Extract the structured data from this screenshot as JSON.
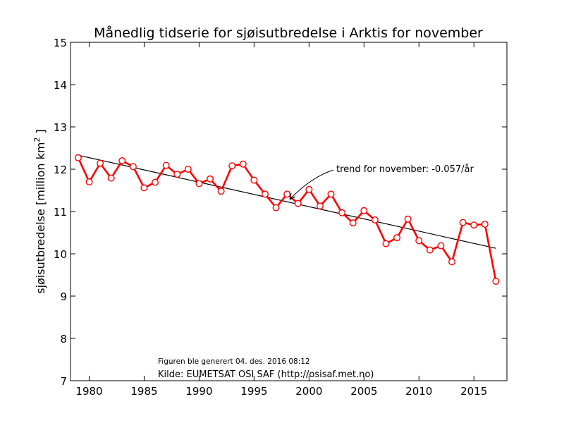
{
  "chart_data": {
    "type": "line",
    "title": "Månedlig tidserie for sjøisutbredelse i Arktis for november",
    "ylabel_main": "sjøisutbredelse [million km",
    "ylabel_sup": "2",
    "ylabel_end": " ]",
    "xlabel": "",
    "xlim": [
      1978.3,
      2018
    ],
    "ylim": [
      7,
      15
    ],
    "xticks": [
      1980,
      1985,
      1990,
      1995,
      2000,
      2005,
      2010,
      2015
    ],
    "yticks": [
      7,
      8,
      9,
      10,
      11,
      12,
      13,
      14,
      15
    ],
    "grid": false,
    "series": [
      {
        "color": "#ff0000",
        "x": [
          1979,
          1980,
          1981,
          1982,
          1983,
          1984,
          1985,
          1986,
          1987,
          1988,
          1989,
          1990,
          1991,
          1992,
          1993,
          1994,
          1995,
          1996,
          1997,
          1998,
          1999,
          2000,
          2001,
          2002,
          2003,
          2004,
          2005,
          2006,
          2007,
          2008,
          2009,
          2010,
          2011,
          2012,
          2013,
          2014,
          2015,
          2016,
          2017
        ],
        "values": [
          12.27,
          11.7,
          12.14,
          11.79,
          12.2,
          12.06,
          11.56,
          11.69,
          12.09,
          11.88,
          12.0,
          11.66,
          11.77,
          11.48,
          12.08,
          12.12,
          11.74,
          11.41,
          11.09,
          11.41,
          11.19,
          11.52,
          11.13,
          11.41,
          10.97,
          10.73,
          11.02,
          10.8,
          10.24,
          10.38,
          10.82,
          10.31,
          10.09,
          10.19,
          9.81,
          10.74,
          10.68,
          10.7,
          9.35
        ]
      }
    ],
    "trend": {
      "x": [
        1979,
        2017
      ],
      "y": [
        12.33,
        10.13
      ],
      "color": "#000000"
    },
    "annotations": {
      "trend_label": "trend for november: -0.057/år",
      "generated": "Figuren ble generert 04. des. 2016 08:12",
      "source": "Kilde: EUMETSAT OSI SAF (http://osisaf.met.no)"
    }
  }
}
